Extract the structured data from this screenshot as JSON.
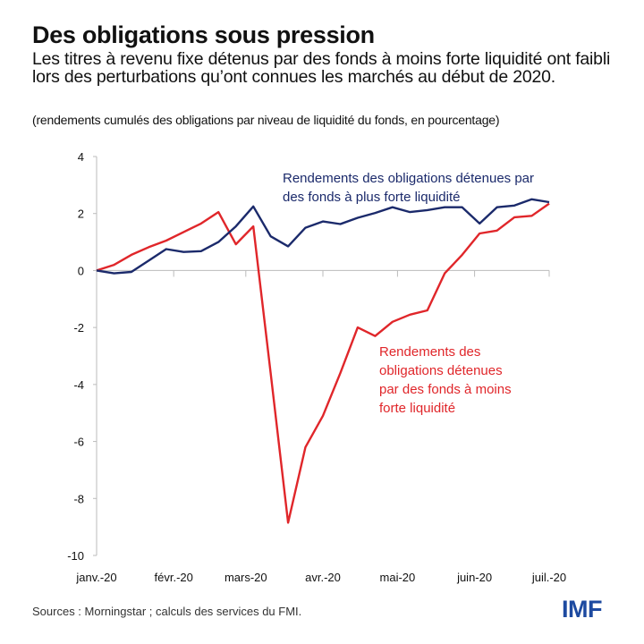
{
  "header": {
    "title": "Des obligations sous pression",
    "subtitle": "Les titres à revenu fixe détenus par des fonds à moins forte liquidité ont faibli lors des perturbations qu’ont connues les marchés au début de 2020.",
    "units": "(rendements cumulés des obligations par niveau de liquidité du fonds, en pourcentage)"
  },
  "footer": {
    "source": "Sources : Morningstar ; calculs des services du FMI.",
    "logo": "IMF"
  },
  "chart_data": {
    "type": "line",
    "title": "Des obligations sous pression",
    "ylabel": "",
    "xlabel": "",
    "ylim": [
      -10,
      4
    ],
    "yticks": [
      "4",
      "2",
      "0",
      "-2",
      "-4",
      "-6",
      "-8",
      "-10"
    ],
    "ytick_values": [
      4,
      2,
      0,
      -2,
      -4,
      -6,
      -8,
      -10
    ],
    "xlim": [
      "2020-01-01",
      "2020-07-01"
    ],
    "xticks": [
      "janv.-20",
      "févr.-20",
      "mars-20",
      "avr.-20",
      "mai-20",
      "juin-20",
      "juil.-20"
    ],
    "xtick_dates": [
      "2020-01-01",
      "2020-02-01",
      "2020-03-01",
      "2020-04-01",
      "2020-05-01",
      "2020-06-01",
      "2020-07-01"
    ],
    "grid": false,
    "x": [
      "2020-01-01",
      "2020-01-08",
      "2020-01-15",
      "2020-01-22",
      "2020-01-29",
      "2020-02-05",
      "2020-02-12",
      "2020-02-19",
      "2020-02-26",
      "2020-03-04",
      "2020-03-11",
      "2020-03-18",
      "2020-03-25",
      "2020-04-01",
      "2020-04-08",
      "2020-04-15",
      "2020-04-22",
      "2020-04-29",
      "2020-05-06",
      "2020-05-13",
      "2020-05-20",
      "2020-05-27",
      "2020-06-03",
      "2020-06-10",
      "2020-06-17",
      "2020-06-24",
      "2020-07-01"
    ],
    "series": [
      {
        "name": "Rendements des obligations détenues par des fonds à plus forte liquidité",
        "color": "#1b2a6b",
        "values": [
          0,
          -0.1,
          -0.05,
          0.35,
          0.75,
          0.65,
          0.68,
          1.0,
          1.55,
          2.25,
          1.2,
          0.85,
          1.5,
          1.72,
          1.63,
          1.85,
          2.02,
          2.22,
          2.05,
          2.12,
          2.22,
          2.22,
          1.65,
          2.22,
          2.28,
          2.5,
          2.4
        ]
      },
      {
        "name": "Rendements des obligations détenues par des fonds à moins forte liquidité",
        "color": "#e0262a",
        "values": [
          0,
          0.2,
          0.55,
          0.82,
          1.05,
          1.35,
          1.65,
          2.05,
          0.92,
          1.55,
          -3.6,
          -8.85,
          -6.2,
          -5.1,
          -3.6,
          -2.0,
          -2.3,
          -1.8,
          -1.55,
          -1.4,
          -0.1,
          0.55,
          1.3,
          1.4,
          1.87,
          1.92,
          2.35
        ]
      }
    ],
    "annotations": [
      {
        "lines": [
          "Rendements des obligations détenues par",
          "des fonds à plus forte liquidité"
        ],
        "series": 0
      },
      {
        "lines": [
          "Rendements des",
          "obligations détenues",
          "par des fonds à moins",
          "forte liquidité"
        ],
        "series": 1
      }
    ]
  }
}
